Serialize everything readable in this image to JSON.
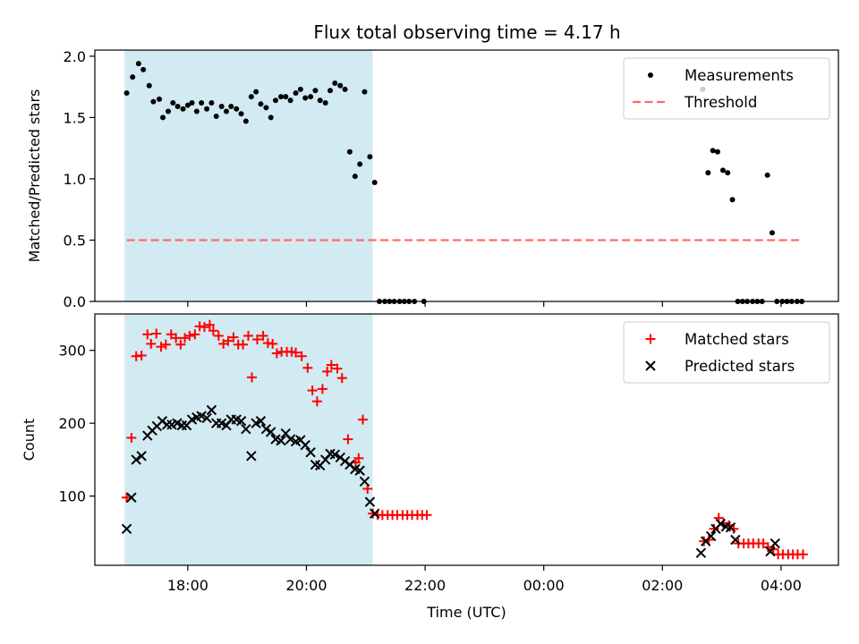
{
  "chart_data": {
    "title": "Flux total observing time = 4.17 h",
    "xlabel": "Time (UTC)",
    "x_type": "time (hours UTC, values beyond 24 are after midnight)",
    "xlim": [
      "16:26",
      "04:58"
    ],
    "x_ticks": [
      {
        "t": 18,
        "label": "18:00"
      },
      {
        "t": 20,
        "label": "20:00"
      },
      {
        "t": 22,
        "label": "22:00"
      },
      {
        "t": 24,
        "label": "00:00"
      },
      {
        "t": 26,
        "label": "02:00"
      },
      {
        "t": 28,
        "label": "04:00"
      }
    ],
    "shaded_span": {
      "start": "16:56",
      "end": "21:07",
      "color": "#add8e6"
    },
    "panels": [
      {
        "type": "scatter",
        "ylabel": "Matched/Predicted stars",
        "ylim": [
          0.0,
          2.05
        ],
        "y_ticks": [
          "0.0",
          "0.5",
          "1.0",
          "1.5",
          "2.0"
        ],
        "legend": "upper right",
        "series": [
          {
            "name": "Measurements",
            "marker": "dot",
            "color": "#000000",
            "points": [
              [
                16.97,
                1.7
              ],
              [
                17.07,
                1.83
              ],
              [
                17.17,
                1.94
              ],
              [
                17.25,
                1.89
              ],
              [
                17.35,
                1.76
              ],
              [
                17.42,
                1.63
              ],
              [
                17.52,
                1.65
              ],
              [
                17.58,
                1.5
              ],
              [
                17.67,
                1.55
              ],
              [
                17.75,
                1.62
              ],
              [
                17.83,
                1.59
              ],
              [
                17.92,
                1.57
              ],
              [
                18.0,
                1.6
              ],
              [
                18.07,
                1.62
              ],
              [
                18.15,
                1.55
              ],
              [
                18.23,
                1.62
              ],
              [
                18.32,
                1.57
              ],
              [
                18.4,
                1.62
              ],
              [
                18.48,
                1.51
              ],
              [
                18.57,
                1.59
              ],
              [
                18.65,
                1.55
              ],
              [
                18.73,
                1.59
              ],
              [
                18.82,
                1.57
              ],
              [
                18.9,
                1.53
              ],
              [
                18.98,
                1.47
              ],
              [
                19.07,
                1.67
              ],
              [
                19.15,
                1.71
              ],
              [
                19.23,
                1.61
              ],
              [
                19.32,
                1.58
              ],
              [
                19.4,
                1.5
              ],
              [
                19.48,
                1.64
              ],
              [
                19.57,
                1.67
              ],
              [
                19.65,
                1.67
              ],
              [
                19.73,
                1.64
              ],
              [
                19.82,
                1.7
              ],
              [
                19.9,
                1.73
              ],
              [
                19.98,
                1.66
              ],
              [
                20.07,
                1.67
              ],
              [
                20.15,
                1.72
              ],
              [
                20.23,
                1.64
              ],
              [
                20.32,
                1.62
              ],
              [
                20.4,
                1.72
              ],
              [
                20.48,
                1.78
              ],
              [
                20.57,
                1.76
              ],
              [
                20.65,
                1.73
              ],
              [
                20.73,
                1.22
              ],
              [
                20.82,
                1.02
              ],
              [
                20.9,
                1.12
              ],
              [
                20.98,
                1.71
              ],
              [
                21.07,
                1.18
              ],
              [
                21.15,
                0.97
              ],
              [
                21.23,
                0.0
              ],
              [
                21.32,
                0.0
              ],
              [
                21.4,
                0.0
              ],
              [
                21.48,
                0.0
              ],
              [
                21.57,
                0.0
              ],
              [
                21.65,
                0.0
              ],
              [
                21.73,
                0.0
              ],
              [
                21.82,
                0.0
              ],
              [
                21.98,
                0.0
              ],
              [
                26.68,
                1.73
              ],
              [
                26.77,
                1.05
              ],
              [
                26.85,
                1.23
              ],
              [
                26.93,
                1.22
              ],
              [
                27.02,
                1.07
              ],
              [
                27.1,
                1.05
              ],
              [
                27.18,
                0.83
              ],
              [
                27.27,
                0.0
              ],
              [
                27.35,
                0.0
              ],
              [
                27.43,
                0.0
              ],
              [
                27.52,
                0.0
              ],
              [
                27.6,
                0.0
              ],
              [
                27.68,
                0.0
              ],
              [
                27.77,
                1.03
              ],
              [
                27.85,
                0.56
              ],
              [
                27.93,
                0.0
              ],
              [
                28.02,
                0.0
              ],
              [
                28.1,
                0.0
              ],
              [
                28.18,
                0.0
              ],
              [
                28.27,
                0.0
              ],
              [
                28.35,
                0.0
              ]
            ]
          },
          {
            "name": "Threshold",
            "marker": "dashed-line",
            "color": "#ff6b6b",
            "points": [
              [
                16.97,
                0.5
              ],
              [
                28.37,
                0.5
              ]
            ]
          }
        ]
      },
      {
        "type": "scatter",
        "ylabel": "Count",
        "ylim": [
          5,
          350
        ],
        "y_ticks": [
          "100",
          "200",
          "300"
        ],
        "legend": "upper right",
        "series": [
          {
            "name": "Matched stars",
            "marker": "plus",
            "color": "#ff0000",
            "points": [
              [
                16.97,
                98
              ],
              [
                17.05,
                180
              ],
              [
                17.13,
                292
              ],
              [
                17.22,
                293
              ],
              [
                17.32,
                322
              ],
              [
                17.38,
                309
              ],
              [
                17.47,
                323
              ],
              [
                17.55,
                305
              ],
              [
                17.63,
                308
              ],
              [
                17.72,
                322
              ],
              [
                17.8,
                317
              ],
              [
                17.88,
                308
              ],
              [
                17.95,
                317
              ],
              [
                18.03,
                320
              ],
              [
                18.12,
                322
              ],
              [
                18.2,
                333
              ],
              [
                18.28,
                332
              ],
              [
                18.37,
                335
              ],
              [
                18.43,
                327
              ],
              [
                18.52,
                320
              ],
              [
                18.6,
                309
              ],
              [
                18.68,
                313
              ],
              [
                18.77,
                318
              ],
              [
                18.85,
                308
              ],
              [
                18.93,
                308
              ],
              [
                19.02,
                320
              ],
              [
                19.08,
                263
              ],
              [
                19.17,
                315
              ],
              [
                19.27,
                320
              ],
              [
                19.35,
                310
              ],
              [
                19.43,
                309
              ],
              [
                19.5,
                296
              ],
              [
                19.58,
                298
              ],
              [
                19.67,
                298
              ],
              [
                19.75,
                298
              ],
              [
                19.82,
                297
              ],
              [
                19.92,
                292
              ],
              [
                20.02,
                276
              ],
              [
                20.1,
                245
              ],
              [
                20.18,
                230
              ],
              [
                20.27,
                247
              ],
              [
                20.35,
                271
              ],
              [
                20.42,
                280
              ],
              [
                20.52,
                275
              ],
              [
                20.6,
                262
              ],
              [
                20.7,
                178
              ],
              [
                20.83,
                146
              ],
              [
                20.88,
                152
              ],
              [
                20.95,
                205
              ],
              [
                21.03,
                110
              ],
              [
                21.12,
                76
              ],
              [
                21.2,
                74
              ],
              [
                21.28,
                74
              ],
              [
                21.37,
                74
              ],
              [
                21.45,
                74
              ],
              [
                21.53,
                74
              ],
              [
                21.62,
                74
              ],
              [
                21.7,
                74
              ],
              [
                21.78,
                74
              ],
              [
                21.87,
                74
              ],
              [
                21.95,
                74
              ],
              [
                22.03,
                74
              ],
              [
                26.7,
                38
              ],
              [
                26.78,
                40
              ],
              [
                26.87,
                55
              ],
              [
                26.95,
                70
              ],
              [
                27.03,
                63
              ],
              [
                27.12,
                60
              ],
              [
                27.2,
                55
              ],
              [
                27.28,
                35
              ],
              [
                27.37,
                35
              ],
              [
                27.45,
                35
              ],
              [
                27.53,
                35
              ],
              [
                27.62,
                35
              ],
              [
                27.7,
                35
              ],
              [
                27.78,
                30
              ],
              [
                27.87,
                27
              ],
              [
                27.95,
                20
              ],
              [
                28.03,
                20
              ],
              [
                28.12,
                20
              ],
              [
                28.2,
                20
              ],
              [
                28.28,
                20
              ],
              [
                28.37,
                20
              ]
            ]
          },
          {
            "name": "Predicted stars",
            "marker": "x",
            "color": "#000000",
            "points": [
              [
                16.97,
                55
              ],
              [
                17.05,
                98
              ],
              [
                17.13,
                150
              ],
              [
                17.22,
                155
              ],
              [
                17.32,
                183
              ],
              [
                17.4,
                190
              ],
              [
                17.48,
                196
              ],
              [
                17.57,
                203
              ],
              [
                17.65,
                198
              ],
              [
                17.73,
                198
              ],
              [
                17.82,
                200
              ],
              [
                17.9,
                197
              ],
              [
                17.98,
                197
              ],
              [
                18.07,
                205
              ],
              [
                18.15,
                208
              ],
              [
                18.23,
                210
              ],
              [
                18.32,
                207
              ],
              [
                18.4,
                218
              ],
              [
                18.48,
                200
              ],
              [
                18.57,
                200
              ],
              [
                18.65,
                197
              ],
              [
                18.73,
                205
              ],
              [
                18.82,
                205
              ],
              [
                18.9,
                203
              ],
              [
                18.98,
                192
              ],
              [
                19.07,
                155
              ],
              [
                19.15,
                200
              ],
              [
                19.23,
                203
              ],
              [
                19.32,
                192
              ],
              [
                19.4,
                188
              ],
              [
                19.48,
                178
              ],
              [
                19.57,
                176
              ],
              [
                19.65,
                186
              ],
              [
                19.73,
                178
              ],
              [
                19.82,
                175
              ],
              [
                19.9,
                177
              ],
              [
                19.98,
                170
              ],
              [
                20.07,
                160
              ],
              [
                20.15,
                143
              ],
              [
                20.23,
                142
              ],
              [
                20.32,
                150
              ],
              [
                20.4,
                158
              ],
              [
                20.48,
                157
              ],
              [
                20.57,
                153
              ],
              [
                20.65,
                148
              ],
              [
                20.73,
                143
              ],
              [
                20.82,
                137
              ],
              [
                20.9,
                135
              ],
              [
                20.98,
                120
              ],
              [
                21.07,
                92
              ],
              [
                21.15,
                76
              ],
              [
                26.65,
                22
              ],
              [
                26.73,
                38
              ],
              [
                26.82,
                45
              ],
              [
                26.9,
                55
              ],
              [
                26.98,
                62
              ],
              [
                27.07,
                58
              ],
              [
                27.15,
                57
              ],
              [
                27.23,
                40
              ],
              [
                27.82,
                24
              ],
              [
                27.9,
                35
              ]
            ]
          }
        ]
      }
    ]
  }
}
